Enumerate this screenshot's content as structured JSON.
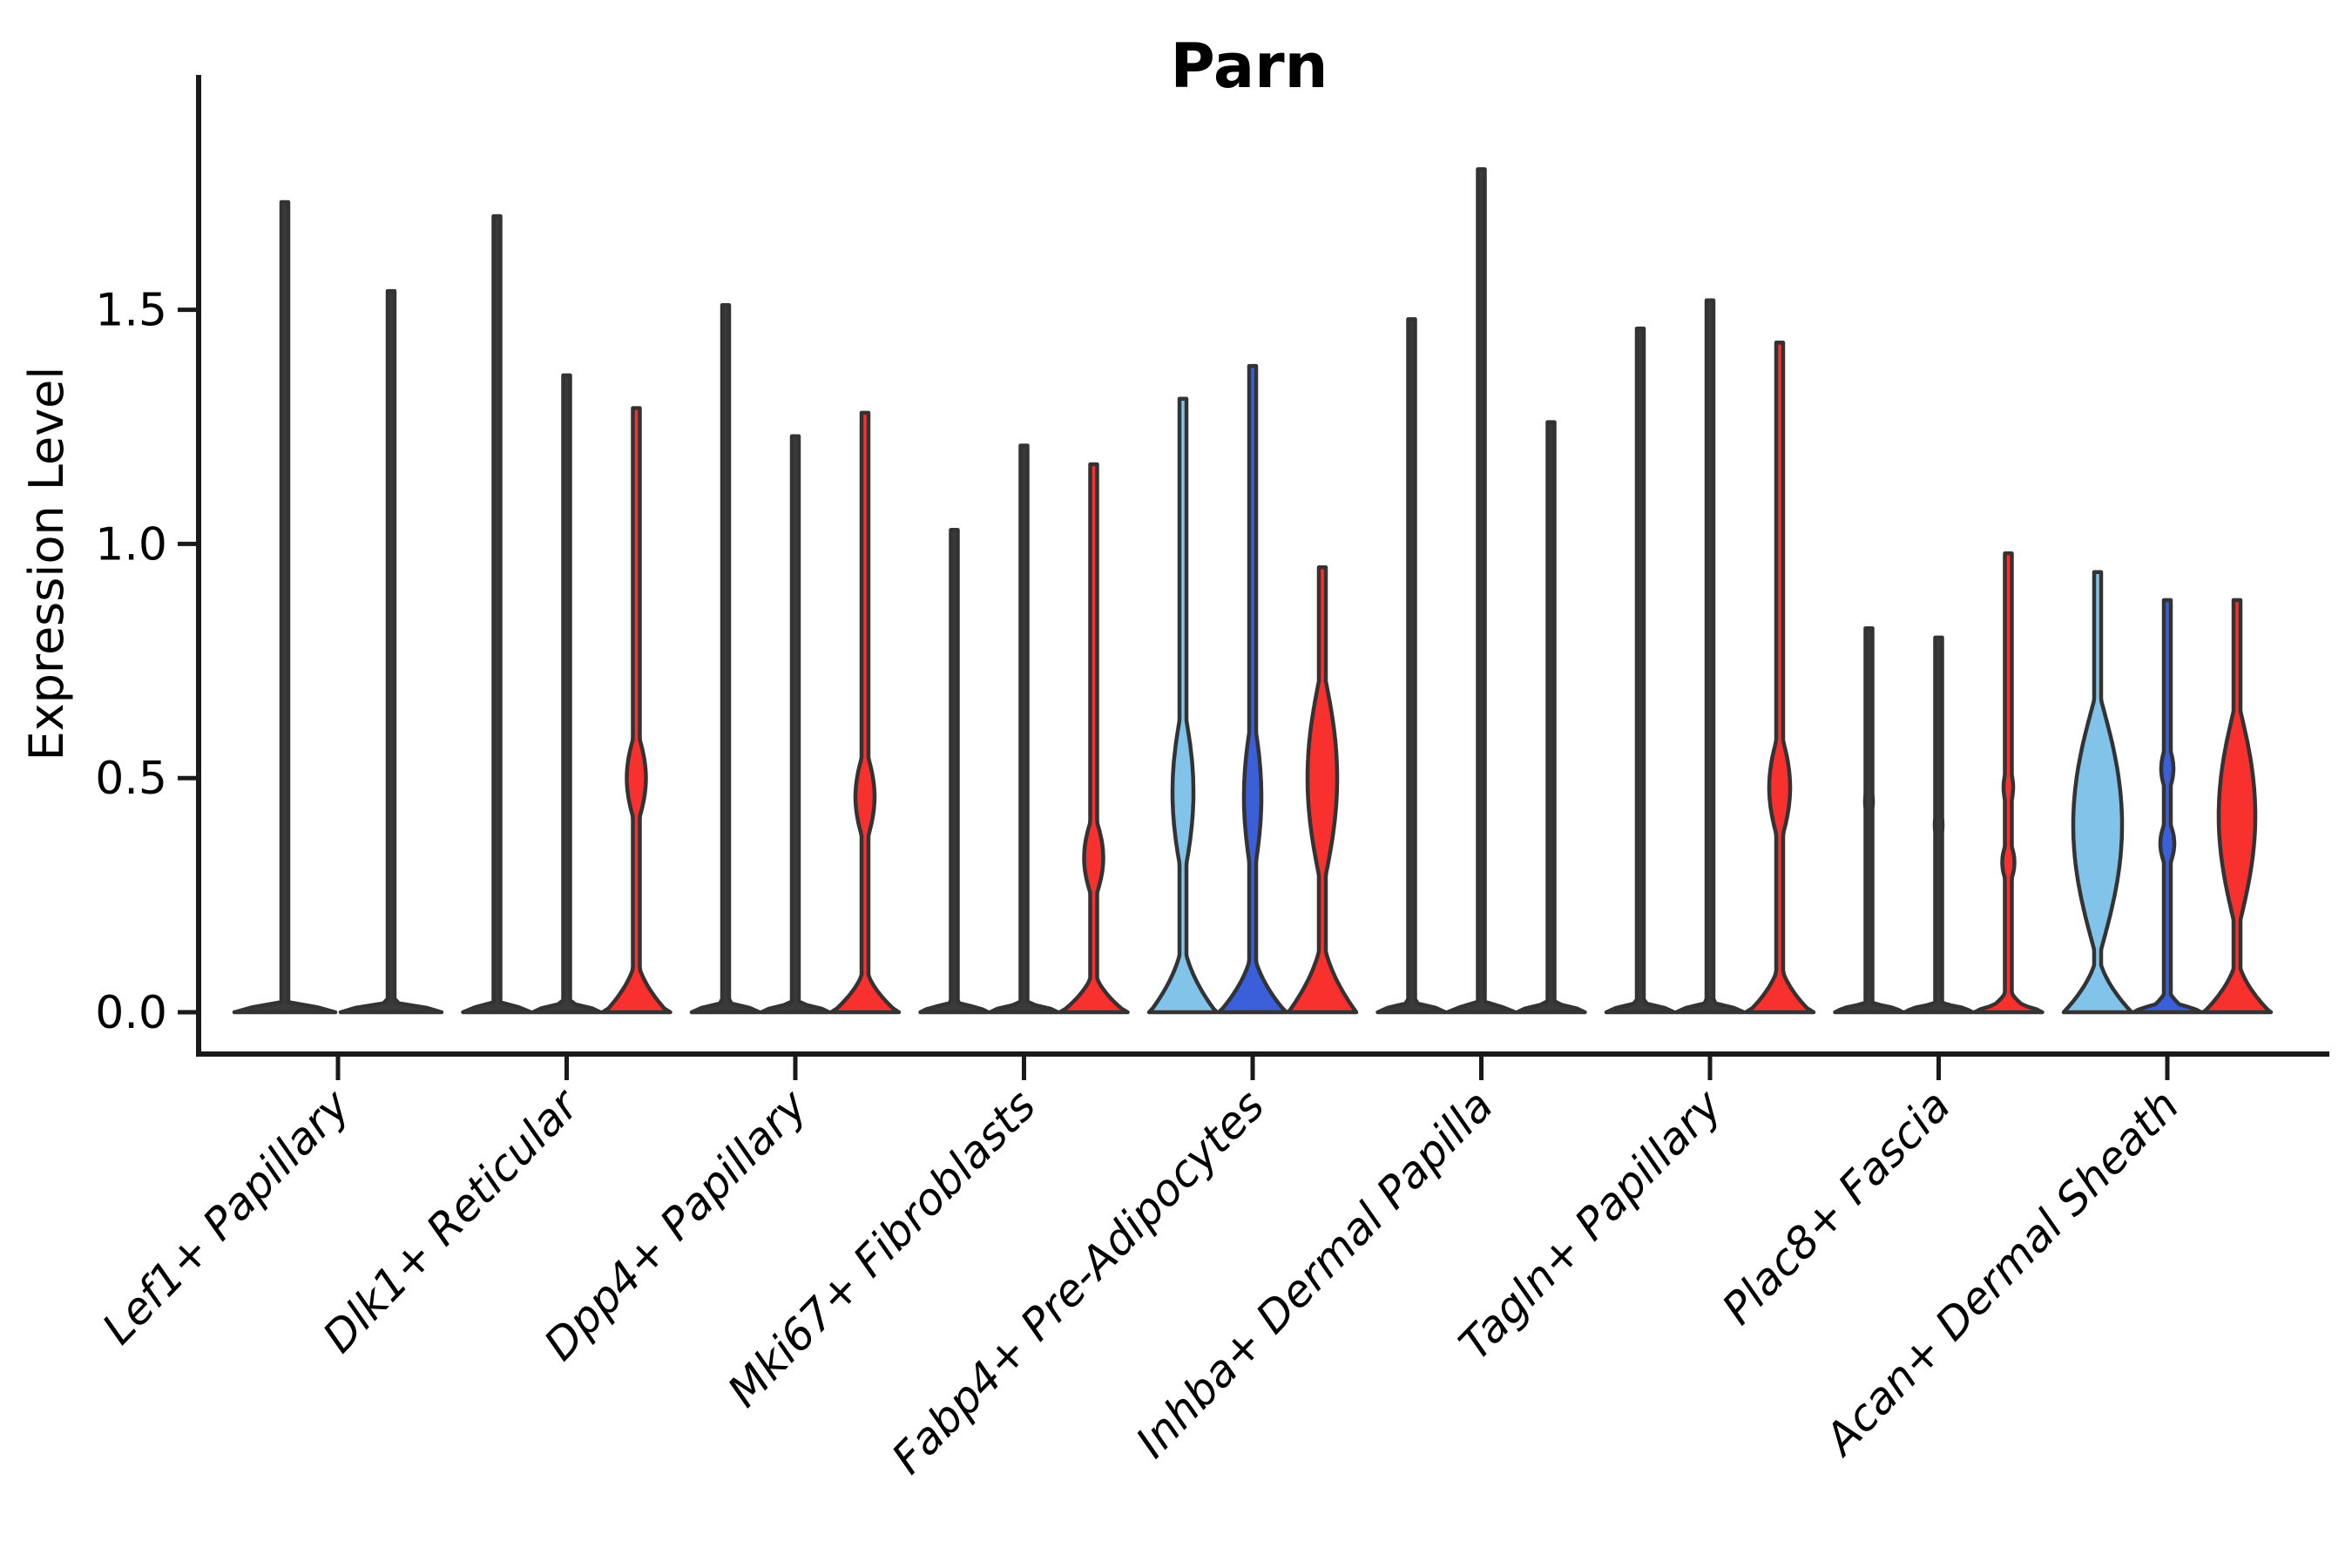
{
  "chart_data": {
    "type": "violin",
    "title": "Parn",
    "ylabel": "Expression Level",
    "xlabel": "",
    "legend": "none",
    "y_axis": {
      "range": [
        0,
        2.0
      ],
      "ticks": [
        {
          "label": "0.0",
          "value": 0.0
        },
        {
          "label": "0.5",
          "value": 0.5
        },
        {
          "label": "1.0",
          "value": 1.0
        },
        {
          "label": "1.5",
          "value": 1.5
        }
      ]
    },
    "x_tick_rotation_deg": 46,
    "colors": {
      "plain": "#3a3a3a",
      "skyblue": "#82C4E9",
      "blue": "#3A5FD8",
      "red": "#F8312E",
      "outline": "#333333",
      "axis": "#1a1a1a"
    },
    "groups": [
      {
        "category": "Lef1+ Papillary",
        "violins": [
          {
            "color": "plain",
            "max": 1.73
          },
          {
            "color": "plain",
            "max": 1.54
          }
        ]
      },
      {
        "category": "Dlk1+ Reticular",
        "violins": [
          {
            "color": "plain",
            "max": 1.7
          },
          {
            "color": "plain",
            "max": 1.36
          },
          {
            "color": "red",
            "max": 1.29,
            "lenses": [
              {
                "center": 0.5,
                "span": 0.22,
                "width": 22
              }
            ],
            "flare_start": 0.13,
            "flare_width": 72
          }
        ]
      },
      {
        "category": "Dpp4+ Papillary",
        "violins": [
          {
            "color": "plain",
            "max": 1.51
          },
          {
            "color": "plain",
            "max": 1.23
          },
          {
            "color": "red",
            "max": 1.28,
            "lenses": [
              {
                "center": 0.46,
                "span": 0.22,
                "width": 22
              }
            ],
            "flare_start": 0.11,
            "flare_width": 74
          }
        ]
      },
      {
        "category": "Mki67+ Fibroblasts",
        "violins": [
          {
            "color": "plain",
            "max": 1.03
          },
          {
            "color": "plain",
            "max": 1.21
          },
          {
            "color": "red",
            "max": 1.17,
            "lenses": [
              {
                "center": 0.33,
                "span": 0.2,
                "width": 22
              }
            ],
            "flare_start": 0.1,
            "flare_width": 74
          }
        ]
      },
      {
        "category": "Fabp4+ Pre-Adipocytes",
        "violins": [
          {
            "color": "skyblue",
            "max": 1.31,
            "lenses": [
              {
                "center": 0.47,
                "span": 0.4,
                "width": 24
              }
            ],
            "flare_start": 0.17,
            "flare_width": 76
          },
          {
            "color": "blue",
            "max": 1.38,
            "lenses": [
              {
                "center": 0.46,
                "span": 0.38,
                "width": 20
              }
            ],
            "flare_start": 0.15,
            "flare_width": 76
          },
          {
            "color": "red",
            "max": 0.95,
            "lenses": [
              {
                "center": 0.5,
                "span": 0.5,
                "width": 34
              }
            ],
            "flare_start": 0.18,
            "flare_width": 78
          }
        ]
      },
      {
        "category": "Inhba+ Dermal Papilla",
        "violins": [
          {
            "color": "plain",
            "max": 1.48
          },
          {
            "color": "plain",
            "max": 1.8
          },
          {
            "color": "plain",
            "max": 1.26
          }
        ]
      },
      {
        "category": "Tagln+ Papillary",
        "violins": [
          {
            "color": "plain",
            "max": 1.46
          },
          {
            "color": "plain",
            "max": 1.52
          },
          {
            "color": "red",
            "max": 1.43,
            "lenses": [
              {
                "center": 0.48,
                "span": 0.26,
                "width": 24
              }
            ],
            "flare_start": 0.12,
            "flare_width": 72
          }
        ]
      },
      {
        "category": "Plac8+ Fascia",
        "violins": [
          {
            "color": "plain",
            "max": 0.82,
            "lenses": [
              {
                "center": 0.45,
                "span": 0.1,
                "width": 9
              }
            ]
          },
          {
            "color": "plain",
            "max": 0.8,
            "lenses": [
              {
                "center": 0.4,
                "span": 0.1,
                "width": 9
              }
            ]
          },
          {
            "color": "red",
            "max": 0.98,
            "lenses": [
              {
                "center": 0.48,
                "span": 0.11,
                "width": 11
              },
              {
                "center": 0.32,
                "span": 0.11,
                "width": 14
              }
            ],
            "flare_start": 0.06,
            "flare_width": 56
          }
        ]
      },
      {
        "category": "Acan+ Dermal Sheath",
        "violins": [
          {
            "color": "skyblue",
            "max": 0.94,
            "lenses": [
              {
                "center": 0.4,
                "span": 0.6,
                "width": 56
              }
            ],
            "flare_start": 0.14,
            "flare_width": 78
          },
          {
            "color": "blue",
            "max": 0.88,
            "lenses": [
              {
                "center": 0.52,
                "span": 0.12,
                "width": 14
              },
              {
                "center": 0.36,
                "span": 0.12,
                "width": 16
              }
            ],
            "flare_start": 0.06,
            "flare_width": 50
          },
          {
            "color": "red",
            "max": 0.88,
            "lenses": [
              {
                "center": 0.42,
                "span": 0.52,
                "width": 42
              }
            ],
            "flare_start": 0.13,
            "flare_width": 76
          }
        ]
      }
    ]
  }
}
